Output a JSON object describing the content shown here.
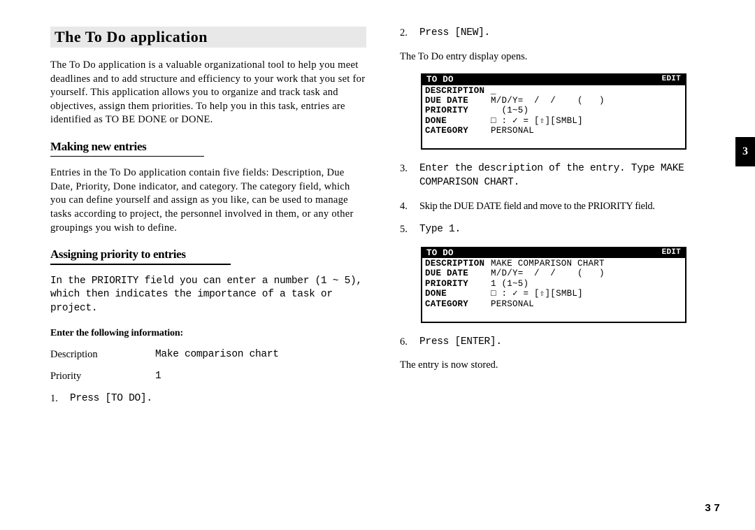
{
  "tab_number": "3",
  "page_number": "37",
  "title": "The To Do application",
  "left": {
    "intro": "The To Do application is a valuable organizational tool to help you meet deadlines and to add structure and efficiency to your work that you set for yourself. This application allows you to organize and track task and objectives, assign them priorities. To help you in this task, entries are identified as TO BE DONE or DONE.",
    "h_making": "Making new entries",
    "p_making": "Entries in the To Do application contain five fields: Description, Due Date, Priority, Done indicator, and category. The category field, which you can define yourself and assign as you like, can be used to manage tasks according to project, the personnel involved in them, or any other groupings you wish to define.",
    "h_assign": "Assigning priority to entries",
    "p_assign": "In the PRIORITY field you can enter a number (1 ~ 5), which then indicates the importance of a task or project.",
    "enter_heading": "Enter the following information:",
    "info": [
      {
        "label": "Description",
        "value": "Make comparison chart"
      },
      {
        "label": "Priority",
        "value": "1"
      }
    ],
    "step1_num": "1.",
    "step1_text": "Press [TO DO]."
  },
  "right": {
    "step2_num": "2.",
    "step2_text": "Press [NEW].",
    "note1": "The To Do entry display opens.",
    "screen1": {
      "header_left": "TO DO",
      "header_right": "EDIT",
      "rows": [
        {
          "label": "DESCRIPTION",
          "value": "_"
        },
        {
          "label": "DUE DATE",
          "value": "M/D/Y=  /  /    (   )"
        },
        {
          "label": "PRIORITY",
          "value": "  (1~5)"
        },
        {
          "label": "DONE",
          "value": "□ : ✓ = [⇧][SMBL]"
        },
        {
          "label": "CATEGORY",
          "value": "PERSONAL"
        }
      ]
    },
    "step3_num": "3.",
    "step3_text": "Enter the description of the entry. Type MAKE COMPARISON CHART.",
    "step4_num": "4.",
    "step4_text": "Skip the DUE DATE field and move to the PRIORITY field.",
    "step5_num": "5.",
    "step5_text": "Type 1.",
    "screen2": {
      "header_left": "TO DO",
      "header_right": "EDIT",
      "rows": [
        {
          "label": "DESCRIPTION",
          "value": "MAKE COMPARISON CHART"
        },
        {
          "label": "DUE DATE",
          "value": "M/D/Y=  /  /    (   )"
        },
        {
          "label": "PRIORITY",
          "value": "1 (1~5)"
        },
        {
          "label": "DONE",
          "value": "□ : ✓ = [⇧][SMBL]"
        },
        {
          "label": "CATEGORY",
          "value": "PERSONAL"
        }
      ]
    },
    "step6_num": "6.",
    "step6_text": "Press [ENTER].",
    "note2": "The entry is now stored."
  }
}
